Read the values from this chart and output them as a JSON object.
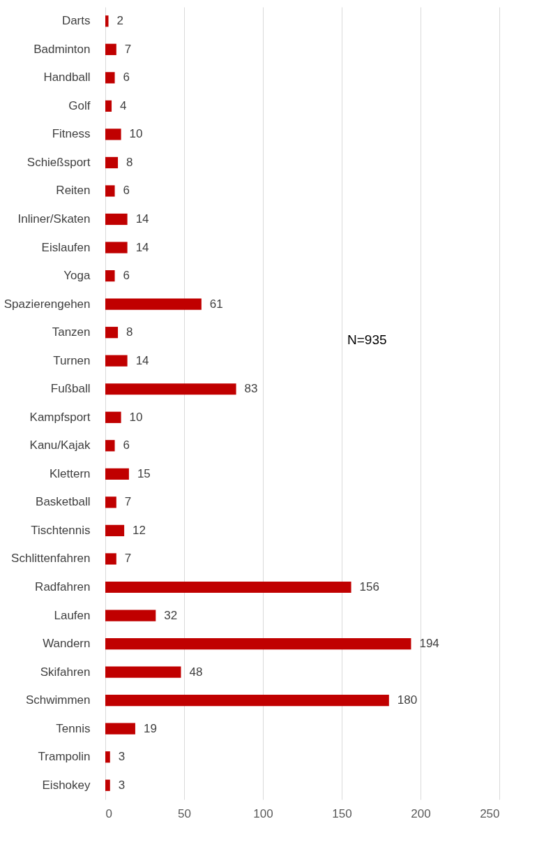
{
  "chart_data": {
    "type": "bar",
    "orientation": "horizontal",
    "categories": [
      "Darts",
      "Badminton",
      "Handball",
      "Golf",
      "Fitness",
      "Schießsport",
      "Reiten",
      "Inliner/Skaten",
      "Eislaufen",
      "Yoga",
      "Spazierengehen",
      "Tanzen",
      "Turnen",
      "Fußball",
      "Kampfsport",
      "Kanu/Kajak",
      "Klettern",
      "Basketball",
      "Tischtennis",
      "Schlittenfahren",
      "Radfahren",
      "Laufen",
      "Wandern",
      "Skifahren",
      "Schwimmen",
      "Tennis",
      "Trampolin",
      "Eishokey"
    ],
    "values": [
      2,
      7,
      6,
      4,
      10,
      8,
      6,
      14,
      14,
      6,
      61,
      8,
      14,
      83,
      10,
      6,
      15,
      7,
      12,
      7,
      156,
      32,
      194,
      48,
      180,
      19,
      3,
      3
    ],
    "color": "#c00000",
    "xlim": [
      0,
      250
    ],
    "xticks": [
      0,
      50,
      100,
      150,
      200,
      250
    ],
    "grid": "x",
    "data_labels": true,
    "annotations": [
      "N=935"
    ]
  }
}
